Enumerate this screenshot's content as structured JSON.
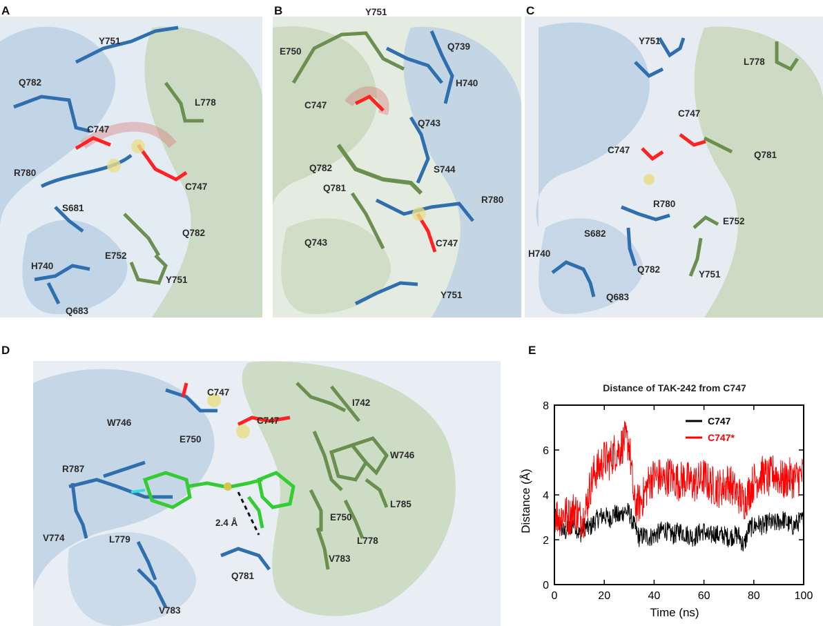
{
  "colors": {
    "blue": "#2f6fae",
    "green": "#6b8f4e",
    "bright_green": "#33cc33",
    "red": "#ff2222",
    "navy": "#1f3fbf",
    "yellow": "#d4c64a",
    "black_series": "#000000",
    "red_series": "#ff0000"
  },
  "panels": {
    "A": {
      "letter": "A",
      "labels": [
        "Y751",
        "Q782",
        "L778",
        "C747",
        "R780",
        "C747",
        "S681",
        "Q782",
        "E752",
        "H740",
        "Y751",
        "Q683"
      ]
    },
    "B": {
      "letter": "B",
      "labels": [
        "Y751",
        "Q739",
        "E750",
        "H740",
        "C747",
        "Q743",
        "S744",
        "Q782",
        "Q781",
        "R780",
        "Q743",
        "C747",
        "Y751"
      ]
    },
    "C": {
      "letter": "C",
      "labels": [
        "Y751",
        "L778",
        "C747",
        "C747",
        "Q781",
        "R780",
        "E752",
        "S682",
        "H740",
        "Q782",
        "Y751",
        "Q683"
      ]
    },
    "D": {
      "letter": "D",
      "labels": [
        "C747",
        "I742",
        "W746",
        "C747",
        "E750",
        "W746",
        "R787",
        "E750",
        "L785",
        "2.4 Å",
        "V774",
        "L779",
        "L778",
        "V783",
        "Q781",
        "V783"
      ]
    },
    "E": {
      "letter": "E"
    }
  },
  "chart_data": {
    "type": "line",
    "title": "Distance of TAK-242 from C747",
    "xlabel": "Time (ns)",
    "ylabel": "Distance (Å)",
    "xlim": [
      0,
      100
    ],
    "ylim": [
      0,
      8
    ],
    "x_ticks": [
      0,
      20,
      40,
      60,
      80,
      100
    ],
    "y_ticks": [
      0,
      2,
      4,
      6,
      8
    ],
    "legend_position": "top-right",
    "series": [
      {
        "name": "C747",
        "color": "#000000",
        "x": [
          0,
          2,
          4,
          6,
          8,
          10,
          12,
          14,
          16,
          18,
          20,
          22,
          24,
          26,
          28,
          30,
          32,
          34,
          36,
          38,
          40,
          42,
          44,
          46,
          48,
          50,
          52,
          54,
          56,
          58,
          60,
          62,
          64,
          66,
          68,
          70,
          72,
          74,
          76,
          78,
          80,
          82,
          84,
          86,
          88,
          90,
          92,
          94,
          96,
          98,
          100
        ],
        "y": [
          3.0,
          2.7,
          2.3,
          2.5,
          2.8,
          2.2,
          2.6,
          2.5,
          2.8,
          3.0,
          3.1,
          2.9,
          3.2,
          3.0,
          3.3,
          3.2,
          2.6,
          2.1,
          2.2,
          2.1,
          2.2,
          2.3,
          2.5,
          2.3,
          2.2,
          2.4,
          2.3,
          2.2,
          2.1,
          2.3,
          2.4,
          2.1,
          2.3,
          2.2,
          2.2,
          2.1,
          2.2,
          2.2,
          1.7,
          2.5,
          2.6,
          2.7,
          2.6,
          2.8,
          2.7,
          2.8,
          2.9,
          2.7,
          2.6,
          2.8,
          2.9
        ]
      },
      {
        "name": "C747*",
        "color": "#ff0000",
        "x": [
          0,
          2,
          4,
          6,
          8,
          10,
          12,
          14,
          16,
          18,
          20,
          22,
          24,
          26,
          28,
          30,
          32,
          34,
          36,
          38,
          40,
          42,
          44,
          46,
          48,
          50,
          52,
          54,
          56,
          58,
          60,
          62,
          64,
          66,
          68,
          70,
          72,
          74,
          76,
          78,
          80,
          82,
          84,
          86,
          88,
          90,
          92,
          94,
          96,
          98,
          100
        ],
        "y": [
          3.2,
          3.0,
          3.2,
          3.0,
          3.4,
          3.0,
          3.0,
          4.2,
          5.0,
          5.2,
          5.6,
          5.5,
          5.9,
          6.0,
          6.4,
          6.3,
          3.6,
          3.6,
          4.0,
          4.6,
          4.8,
          4.8,
          4.6,
          4.9,
          4.7,
          4.6,
          4.7,
          4.6,
          4.5,
          4.6,
          4.8,
          4.5,
          4.4,
          4.3,
          4.4,
          4.6,
          4.2,
          4.0,
          3.7,
          4.1,
          4.6,
          4.8,
          4.9,
          4.7,
          5.0,
          4.8,
          4.6,
          4.8,
          4.7,
          4.8,
          4.9
        ]
      }
    ]
  }
}
